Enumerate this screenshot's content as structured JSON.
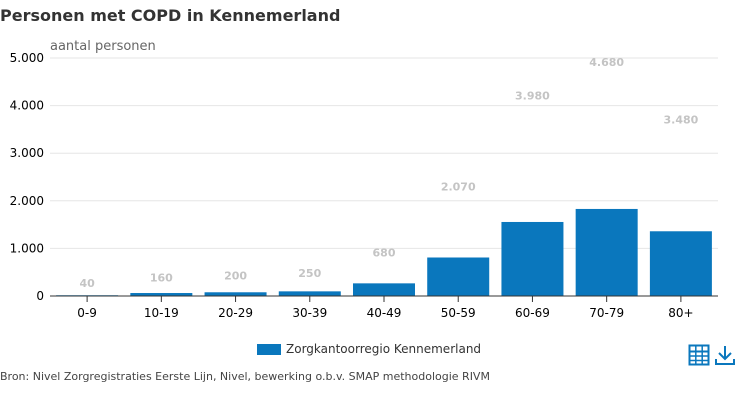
{
  "title": "Personen met COPD in Kennemerland",
  "source": "Bron: Nivel Zorgregistraties Eerste Lijn, Nivel, bewerking o.b.v. SMAP methodologie RIVM",
  "toolbar": {
    "table_icon": "table-icon",
    "download_icon": "download-icon"
  },
  "colors": {
    "series": "#0a77bd",
    "grid": "#e6e6e6",
    "axis": "#333333",
    "data_label": "#c4c4c4"
  },
  "chart_data": {
    "type": "bar",
    "title": "Personen met COPD in Kennemerland",
    "ylabel": "aantal personen",
    "xlabel": "",
    "categories": [
      "0-9",
      "10-19",
      "20-29",
      "30-39",
      "40-49",
      "50-59",
      "60-69",
      "70-79",
      "80+"
    ],
    "series": [
      {
        "name": "Zorgkantoorregio Kennemerland",
        "values": [
          40,
          160,
          200,
          250,
          680,
          2070,
          3980,
          4680,
          3480
        ]
      }
    ],
    "data_labels": [
      "40",
      "160",
      "200",
      "250",
      "680",
      "2.070",
      "3.980",
      "4.680",
      "3.480"
    ],
    "y_ticks": [
      0,
      1000,
      2000,
      3000,
      4000,
      5000
    ],
    "y_tick_labels": [
      "0",
      "1.000",
      "2.000",
      "3.000",
      "4.000",
      "5.000"
    ],
    "ylim": [
      0,
      5000
    ],
    "grid": true,
    "legend_position": "bottom-center"
  }
}
